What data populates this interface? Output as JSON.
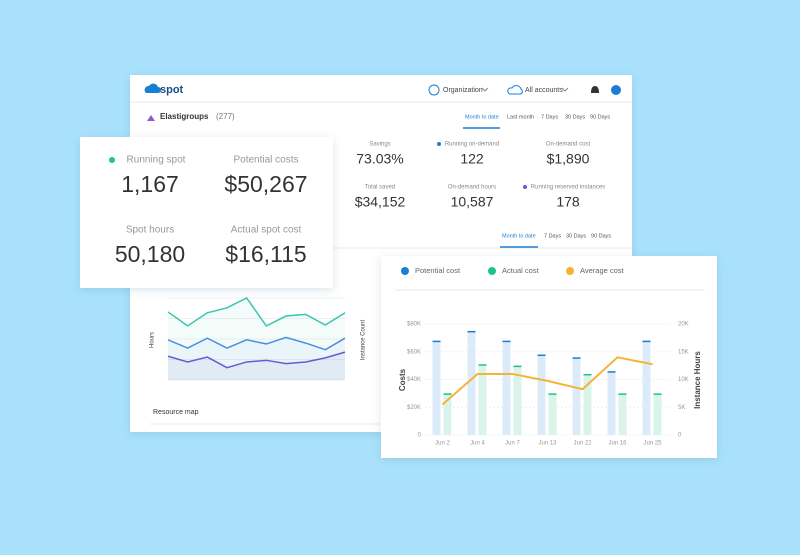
{
  "nav": {
    "logo": "spot",
    "organization": "Organization",
    "accounts": "All accounts"
  },
  "group": {
    "title": "Elastigroups",
    "count": "(277)",
    "tabs": [
      "Month to date",
      "Last month",
      "7 Days",
      "30 Days",
      "90 Days"
    ]
  },
  "stats": [
    {
      "label": "Savings",
      "value": "73.03%"
    },
    {
      "label": "Running on-demand",
      "value": "122"
    },
    {
      "label": "On-demand cost",
      "value": "$1,890"
    },
    {
      "label": "Total saved",
      "value": "$34,152"
    },
    {
      "label": "On-demand hours",
      "value": "10,587"
    },
    {
      "label": "Running reserved instances",
      "value": "178"
    }
  ],
  "chart_tabs": [
    "Month to date",
    "7 Days",
    "30 Days",
    "90 Days"
  ],
  "resource_map": "Resource map",
  "summary": [
    {
      "label": "Running spot",
      "value": "1,167"
    },
    {
      "label": "Potential costs",
      "value": "$50,267"
    },
    {
      "label": "Spot hours",
      "value": "50,180"
    },
    {
      "label": "Actual spot cost",
      "value": "$16,115"
    }
  ],
  "chart_data": [
    {
      "type": "line",
      "ylabel": "Hours",
      "y2label": "Instance Count",
      "ylim": [
        0,
        100
      ],
      "categories": [
        null,
        null,
        null,
        null,
        null,
        null,
        null,
        null,
        null,
        null
      ],
      "series": [
        {
          "color": "#3cc4b0",
          "values": [
            83,
            66,
            82,
            88,
            100,
            66,
            78,
            80,
            67,
            82
          ]
        },
        {
          "color": "#4a8fe0",
          "values": [
            49,
            39,
            51,
            39,
            49,
            44,
            52,
            45,
            37,
            51
          ]
        },
        {
          "color": "#6a5ad0",
          "values": [
            29,
            22,
            28,
            15,
            22,
            24,
            20,
            22,
            27,
            34
          ]
        }
      ]
    },
    {
      "type": "bar",
      "ylabel": "Costs",
      "y2label": "Instance Hours",
      "legend": "top-left",
      "grid": true,
      "categories": [
        "Jun 2",
        "Jun 4",
        "Jun 7",
        "Jun 13",
        "Jun 22",
        "Jun 16",
        "Jun 25"
      ],
      "ylim": [
        0,
        80000
      ],
      "yticks": [
        0,
        {
          "value": 20000,
          "label": "$20K"
        },
        {
          "value": 40000,
          "label": "$40K"
        },
        {
          "value": 60000,
          "label": "$60K"
        },
        {
          "value": 80000,
          "label": "$80K"
        }
      ],
      "y2lim": [
        0,
        20000
      ],
      "y2ticks": [
        0,
        {
          "value": 5000,
          "label": "5K"
        },
        {
          "value": 10000,
          "label": "10K"
        },
        {
          "value": 15000,
          "label": "15K"
        },
        {
          "value": 20000,
          "label": "20K"
        }
      ],
      "series": [
        {
          "name": "Potential cost",
          "color": "#1a7fd4",
          "values": [
            68000,
            75000,
            68000,
            58000,
            56000,
            46000,
            68000
          ]
        },
        {
          "name": "Actual cost",
          "color": "#1ec28b",
          "values": [
            30000,
            51000,
            50000,
            30000,
            44000,
            30000,
            30000
          ]
        },
        {
          "name": "Average cost",
          "color": "#f5b335",
          "type": "line",
          "values": [
            22000,
            44000,
            44000,
            39000,
            33000,
            56000,
            51000
          ]
        }
      ]
    }
  ]
}
